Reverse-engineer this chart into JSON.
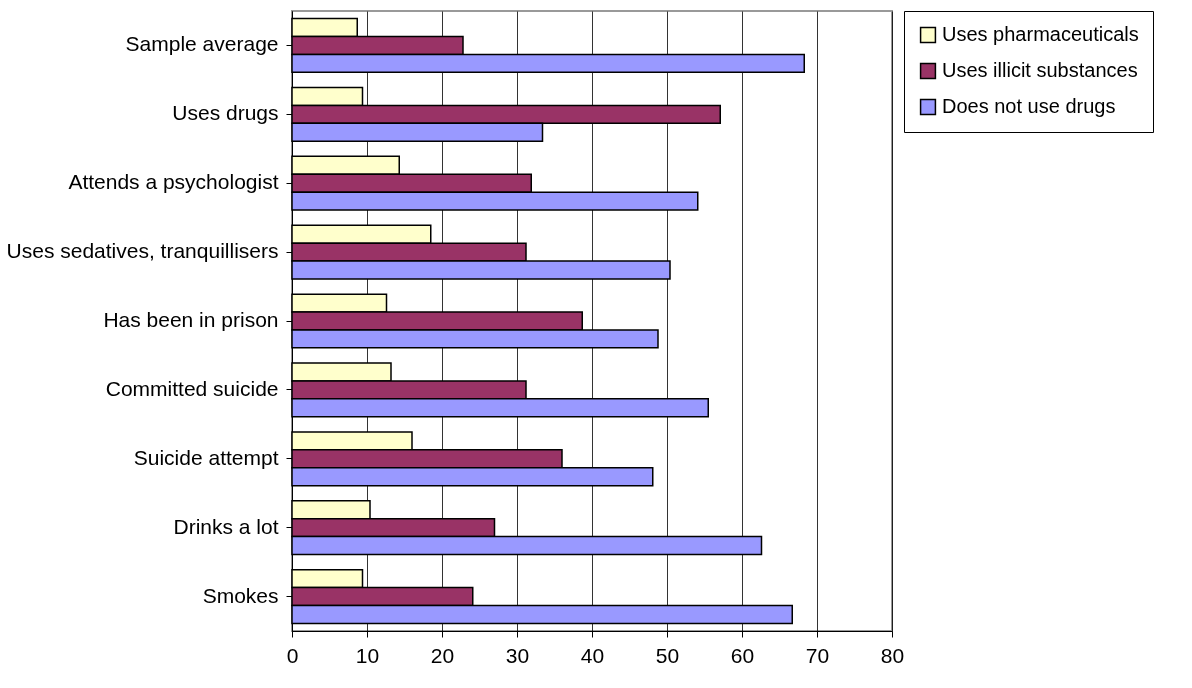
{
  "chart_data": {
    "type": "bar",
    "orientation": "horizontal",
    "categories": [
      "Sample average",
      "Uses drugs",
      "Attends a psychologist",
      "Uses sedatives, tranquillisers",
      "Has been in prison",
      "Committed suicide",
      "Suicide attempt",
      "Drinks a lot",
      "Smokes"
    ],
    "series": [
      {
        "name": "Uses pharmaceuticals",
        "color": "#ffffcc",
        "values": [
          8.7,
          9.4,
          14.3,
          18.5,
          12.6,
          13.2,
          16.0,
          10.4,
          9.4
        ]
      },
      {
        "name": "Uses illicit substances",
        "color": "#993366",
        "values": [
          22.8,
          57.1,
          31.9,
          31.2,
          38.7,
          31.2,
          36.0,
          27.0,
          24.1
        ]
      },
      {
        "name": "Does not use drugs",
        "color": "#9999ff",
        "values": [
          68.3,
          33.4,
          54.1,
          50.4,
          48.8,
          55.5,
          48.1,
          62.6,
          66.7
        ]
      }
    ],
    "xlim": [
      0,
      80
    ],
    "xticks": [
      0,
      10,
      20,
      30,
      40,
      50,
      60,
      70,
      80
    ],
    "grid": "x",
    "legend": "right"
  }
}
